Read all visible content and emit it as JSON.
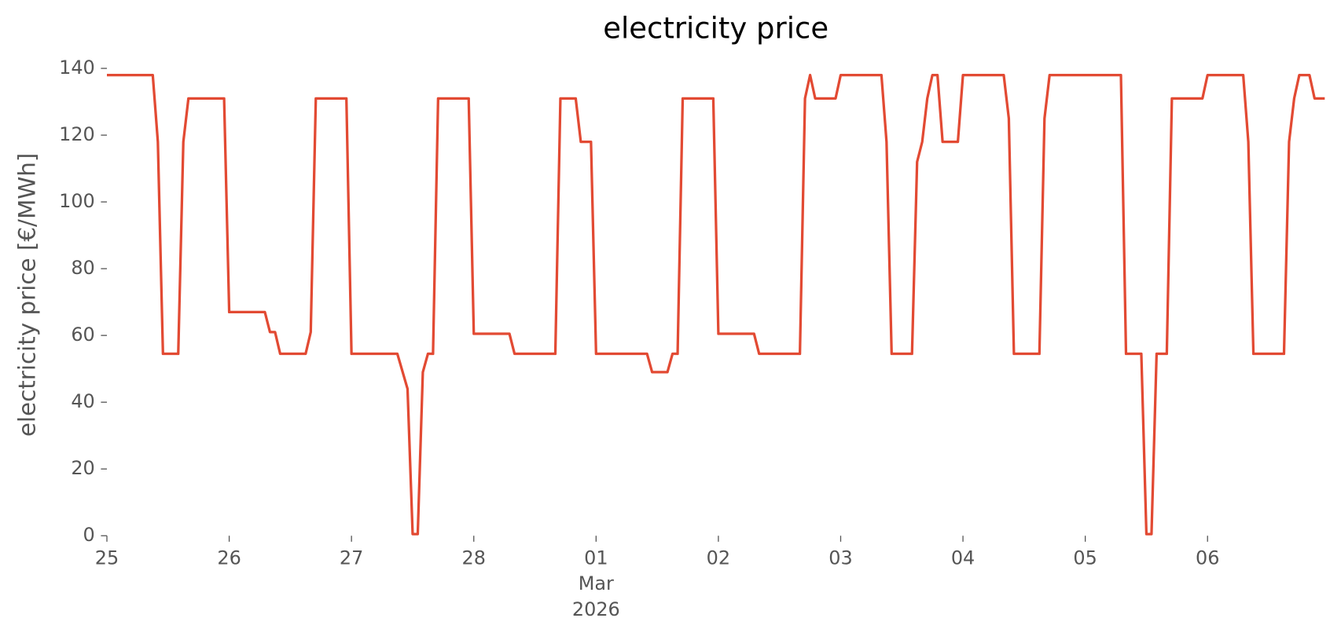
{
  "chart_data": {
    "type": "line",
    "title": "electricity price",
    "ylabel": "electricity price [€/MWh]",
    "x": [
      "2026-02-25T00:00",
      "2026-02-25T09:00",
      "2026-02-25T10:00",
      "2026-02-25T11:00",
      "2026-02-25T14:00",
      "2026-02-25T15:00",
      "2026-02-25T16:00",
      "2026-02-25T23:00",
      "2026-02-26T00:00",
      "2026-02-26T07:00",
      "2026-02-26T08:00",
      "2026-02-26T09:00",
      "2026-02-26T10:00",
      "2026-02-26T15:00",
      "2026-02-26T16:00",
      "2026-02-26T17:00",
      "2026-02-26T23:00",
      "2026-02-27T00:00",
      "2026-02-27T09:00",
      "2026-02-27T11:00",
      "2026-02-27T12:00",
      "2026-02-27T13:00",
      "2026-02-27T14:00",
      "2026-02-27T15:00",
      "2026-02-27T16:00",
      "2026-02-27T17:00",
      "2026-02-27T23:00",
      "2026-02-28T00:00",
      "2026-02-28T07:00",
      "2026-02-28T08:00",
      "2026-02-28T16:00",
      "2026-02-28T17:00",
      "2026-02-28T20:00",
      "2026-02-28T21:00",
      "2026-02-28T23:00",
      "2026-03-01T00:00",
      "2026-03-01T10:00",
      "2026-03-01T11:00",
      "2026-03-01T14:00",
      "2026-03-01T15:00",
      "2026-03-01T16:00",
      "2026-03-01T17:00",
      "2026-03-01T23:00",
      "2026-03-02T00:00",
      "2026-03-02T07:00",
      "2026-03-02T08:00",
      "2026-03-02T16:00",
      "2026-03-02T17:00",
      "2026-03-02T18:00",
      "2026-03-02T19:00",
      "2026-03-02T23:00",
      "2026-03-03T00:00",
      "2026-03-03T08:00",
      "2026-03-03T09:00",
      "2026-03-03T10:00",
      "2026-03-03T14:00",
      "2026-03-03T15:00",
      "2026-03-03T16:00",
      "2026-03-03T17:00",
      "2026-03-03T18:00",
      "2026-03-03T19:00",
      "2026-03-03T20:00",
      "2026-03-03T23:00",
      "2026-03-04T00:00",
      "2026-03-04T08:00",
      "2026-03-04T09:00",
      "2026-03-04T10:00",
      "2026-03-04T15:00",
      "2026-03-04T16:00",
      "2026-03-04T17:00",
      "2026-03-05T07:00",
      "2026-03-05T08:00",
      "2026-03-05T11:00",
      "2026-03-05T12:00",
      "2026-03-05T13:00",
      "2026-03-05T14:00",
      "2026-03-05T16:00",
      "2026-03-05T17:00",
      "2026-03-05T23:00",
      "2026-03-06T00:00",
      "2026-03-06T07:00",
      "2026-03-06T08:00",
      "2026-03-06T09:00",
      "2026-03-06T15:00",
      "2026-03-06T16:00",
      "2026-03-06T17:00",
      "2026-03-06T18:00",
      "2026-03-06T20:00",
      "2026-03-06T21:00",
      "2026-03-06T23:00"
    ],
    "series": [
      {
        "color": "#E24A33",
        "values": [
          138,
          138,
          118,
          54.5,
          54.5,
          118,
          131,
          131,
          67,
          67,
          61,
          61,
          54.5,
          54.5,
          61,
          131,
          131,
          54.5,
          54.5,
          44,
          0.5,
          0.5,
          49,
          54.5,
          54.5,
          131,
          131,
          60.5,
          60.5,
          54.5,
          54.5,
          131,
          131,
          118,
          118,
          54.5,
          54.5,
          49,
          49,
          54.5,
          54.5,
          131,
          131,
          60.5,
          60.5,
          54.5,
          54.5,
          131,
          138,
          131,
          131,
          138,
          138,
          118,
          54.5,
          54.5,
          112,
          118,
          131,
          138,
          138,
          118,
          118,
          138,
          138,
          125,
          54.5,
          54.5,
          125,
          138,
          138,
          54.5,
          54.5,
          0.5,
          0.5,
          54.5,
          54.5,
          131,
          131,
          138,
          138,
          118,
          54.5,
          54.5,
          118,
          131,
          138,
          138,
          131,
          131
        ]
      }
    ],
    "xlim": [
      "2026-02-25T00:00",
      "2026-03-06T23:00"
    ],
    "xticks": [
      {
        "value": "2026-02-25T00:00",
        "label": "25"
      },
      {
        "value": "2026-02-26T00:00",
        "label": "26"
      },
      {
        "value": "2026-02-27T00:00",
        "label": "27"
      },
      {
        "value": "2026-02-28T00:00",
        "label": "28"
      },
      {
        "value": "2026-03-01T00:00",
        "label": "01\nMar\n2026"
      },
      {
        "value": "2026-03-02T00:00",
        "label": "02"
      },
      {
        "value": "2026-03-03T00:00",
        "label": "03"
      },
      {
        "value": "2026-03-04T00:00",
        "label": "04"
      },
      {
        "value": "2026-03-05T00:00",
        "label": "05"
      },
      {
        "value": "2026-03-06T00:00",
        "label": "06"
      }
    ],
    "ylim": [
      0,
      140
    ],
    "yticks": [
      0,
      20,
      40,
      60,
      80,
      100,
      120,
      140
    ],
    "grid": false
  }
}
